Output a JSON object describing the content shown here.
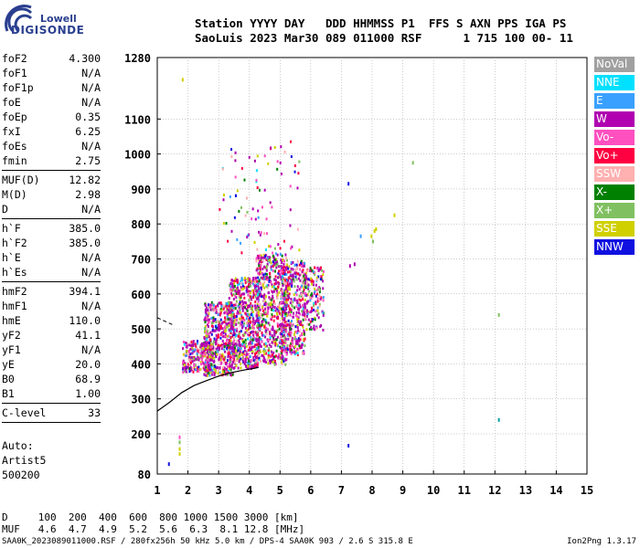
{
  "logo": {
    "top": "Lowell",
    "bottom": "DIGISONDE"
  },
  "header": {
    "line1": "Station YYYY DAY   DDD HHMMSS P1  FFS S AXN PPS IGA PS",
    "line2": "SaoLuis 2023 Mar30 089 011000 RSF      1 715 100 00- 11"
  },
  "params_group1": [
    {
      "label": "foF2",
      "value": "4.300"
    },
    {
      "label": "foF1",
      "value": "N/A"
    },
    {
      "label": "foF1p",
      "value": "N/A"
    },
    {
      "label": "foE",
      "value": "N/A"
    },
    {
      "label": "foEp",
      "value": "0.35"
    },
    {
      "label": "fxI",
      "value": "6.25"
    },
    {
      "label": "foEs",
      "value": "N/A"
    },
    {
      "label": "fmin",
      "value": "2.75"
    }
  ],
  "params_group2": [
    {
      "label": "MUF(D)",
      "value": "12.82"
    },
    {
      "label": "M(D)",
      "value": "2.98"
    },
    {
      "label": "D",
      "value": "N/A"
    }
  ],
  "params_group3": [
    {
      "label": "h`F",
      "value": "385.0"
    },
    {
      "label": "h`F2",
      "value": "385.0"
    },
    {
      "label": "h`E",
      "value": "N/A"
    },
    {
      "label": "h`Es",
      "value": "N/A"
    }
  ],
  "params_group4": [
    {
      "label": "hmF2",
      "value": "394.1"
    },
    {
      "label": "hmF1",
      "value": "N/A"
    },
    {
      "label": "hmE",
      "value": "110.0"
    },
    {
      "label": "yF2",
      "value": "41.1"
    },
    {
      "label": "yF1",
      "value": "N/A"
    },
    {
      "label": "yE",
      "value": "20.0"
    },
    {
      "label": "B0",
      "value": "68.9"
    },
    {
      "label": "B1",
      "value": "1.00"
    }
  ],
  "params_group5": [
    {
      "label": "C-level",
      "value": "33"
    }
  ],
  "auto": {
    "line1": "Auto:",
    "line2": "Artist5",
    "line3": "500200"
  },
  "legend": [
    {
      "label": "NoVal",
      "color": "#a0a0a0"
    },
    {
      "label": "NNE",
      "color": "#00e0ff"
    },
    {
      "label": "E",
      "color": "#3aa0ff"
    },
    {
      "label": "W",
      "color": "#b000b0"
    },
    {
      "label": "Vo-",
      "color": "#ff50c0"
    },
    {
      "label": "Vo+",
      "color": "#ff0040"
    },
    {
      "label": "SSW",
      "color": "#ffb0b0"
    },
    {
      "label": "X-",
      "color": "#008000"
    },
    {
      "label": "X+",
      "color": "#80c060"
    },
    {
      "label": "SSE",
      "color": "#d0d000"
    },
    {
      "label": "NNW",
      "color": "#1010e0"
    }
  ],
  "bottom_table": {
    "row1": "D     100  200  400  600  800 1000 1500 3000 [km]",
    "row2": "MUF   4.6  4.7  4.9  5.2  5.6  6.3  8.1 12.8 [MHz]"
  },
  "footer_left": "SAA0K_2023089011000.RSF / 280fx256h 50 kHz 5.0 km / DPS-4 SAA0K 903 / 2.6 S 315.8 E",
  "footer_right": "Ion2Png 1.3.17",
  "chart_data": {
    "type": "scatter",
    "xlabel": "",
    "ylabel": "",
    "xlim": [
      1,
      15
    ],
    "ylim": [
      80,
      1280
    ],
    "x_ticks": [
      "1",
      "2",
      "3",
      "4",
      "5",
      "6",
      "7",
      "8",
      "9",
      "10",
      "11",
      "12",
      "13",
      "14",
      "15"
    ],
    "y_ticks": [
      "80",
      "200",
      "300",
      "400",
      "500",
      "600",
      "700",
      "800",
      "900",
      "1000",
      "1100",
      "1280"
    ],
    "grid": true,
    "virtual_height_profile": {
      "x": [
        1.0,
        1.4,
        1.8,
        2.2,
        2.6,
        3.0,
        3.4,
        3.8,
        4.2,
        4.3
      ],
      "y": [
        265,
        290,
        318,
        338,
        352,
        365,
        375,
        382,
        388,
        390
      ]
    },
    "dashed_segment": {
      "x": [
        1.0,
        1.5
      ],
      "y": [
        532,
        512
      ]
    },
    "echo_regions": [
      {
        "x_range": [
          1.8,
          2.8
        ],
        "y_range": [
          380,
          470
        ],
        "count": 260
      },
      {
        "x_range": [
          2.5,
          3.5
        ],
        "y_range": [
          370,
          580
        ],
        "count": 520
      },
      {
        "x_range": [
          3.3,
          4.3
        ],
        "y_range": [
          390,
          650
        ],
        "count": 600
      },
      {
        "x_range": [
          4.2,
          5.2
        ],
        "y_range": [
          400,
          720
        ],
        "count": 620
      },
      {
        "x_range": [
          5.0,
          5.8
        ],
        "y_range": [
          430,
          700
        ],
        "count": 420
      },
      {
        "x_range": [
          5.7,
          6.4
        ],
        "y_range": [
          500,
          680
        ],
        "count": 160
      },
      {
        "x_range": [
          3.0,
          5.6
        ],
        "y_range": [
          720,
          1040
        ],
        "count": 90
      }
    ],
    "isolated_points": [
      {
        "x": 1.8,
        "y": 1220,
        "c": "#d0d000"
      },
      {
        "x": 1.7,
        "y": 195,
        "c": "#ff50c0"
      },
      {
        "x": 1.7,
        "y": 180,
        "c": "#80c060"
      },
      {
        "x": 1.7,
        "y": 160,
        "c": "#d0d000"
      },
      {
        "x": 1.7,
        "y": 145,
        "c": "#d0d000"
      },
      {
        "x": 1.35,
        "y": 115,
        "c": "#1010e0"
      },
      {
        "x": 7.2,
        "y": 920,
        "c": "#1010e0"
      },
      {
        "x": 7.2,
        "y": 170,
        "c": "#1010e0"
      },
      {
        "x": 7.25,
        "y": 685,
        "c": "#b000b0"
      },
      {
        "x": 7.4,
        "y": 690,
        "c": "#b000b0"
      },
      {
        "x": 7.95,
        "y": 770,
        "c": "#d0d000"
      },
      {
        "x": 8.05,
        "y": 785,
        "c": "#d0d000"
      },
      {
        "x": 8.1,
        "y": 790,
        "c": "#d0d000"
      },
      {
        "x": 8.0,
        "y": 755,
        "c": "#80c060"
      },
      {
        "x": 8.7,
        "y": 830,
        "c": "#d0d000"
      },
      {
        "x": 9.3,
        "y": 980,
        "c": "#80c060"
      },
      {
        "x": 12.1,
        "y": 545,
        "c": "#80c060"
      },
      {
        "x": 12.1,
        "y": 245,
        "c": "#00a0a0"
      },
      {
        "x": 7.6,
        "y": 770,
        "c": "#3aa0ff"
      }
    ]
  }
}
